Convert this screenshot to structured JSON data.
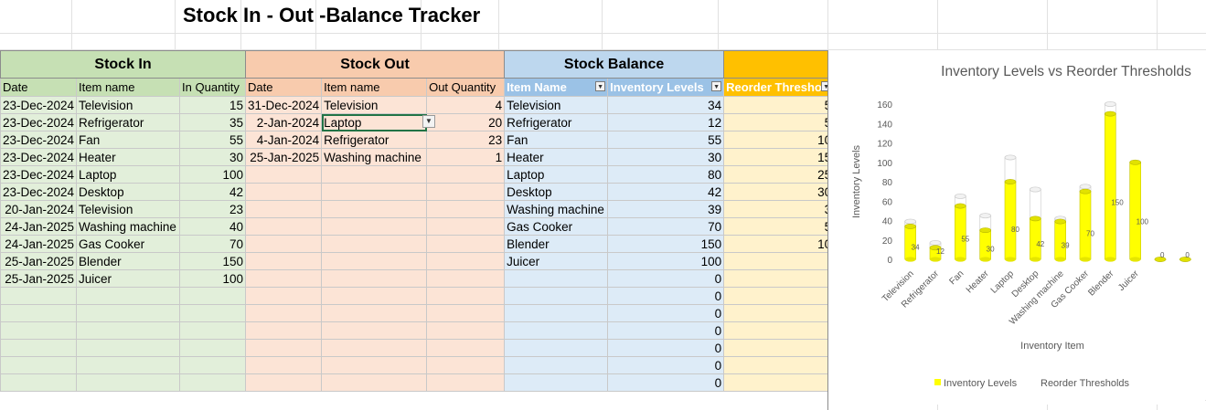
{
  "title": "Stock In - Out -Balance Tracker",
  "sections": {
    "stock_in": "Stock In",
    "stock_out": "Stock Out",
    "stock_balance": "Stock Balance"
  },
  "columns": {
    "in_date": "Date",
    "in_item": "Item name",
    "in_qty": "In Quantity",
    "out_date": "Date",
    "out_item": "Item name",
    "out_qty": "Out Quantity",
    "bal_item": "Item Name",
    "bal_level": "Inventory Levels",
    "bal_threshold": "Reorder Thresho"
  },
  "stock_in": [
    {
      "date": "23-Dec-2024",
      "item": "Television",
      "qty": "15"
    },
    {
      "date": "23-Dec-2024",
      "item": "Refrigerator",
      "qty": "35"
    },
    {
      "date": "23-Dec-2024",
      "item": "Fan",
      "qty": "55"
    },
    {
      "date": "23-Dec-2024",
      "item": "Heater",
      "qty": "30"
    },
    {
      "date": "23-Dec-2024",
      "item": "Laptop",
      "qty": "100"
    },
    {
      "date": "23-Dec-2024",
      "item": "Desktop",
      "qty": "42"
    },
    {
      "date": "20-Jan-2024",
      "item": "Television",
      "qty": "23"
    },
    {
      "date": "24-Jan-2025",
      "item": "Washing machine",
      "qty": "40"
    },
    {
      "date": "24-Jan-2025",
      "item": "Gas Cooker",
      "qty": "70"
    },
    {
      "date": "25-Jan-2025",
      "item": "Blender",
      "qty": "150"
    },
    {
      "date": "25-Jan-2025",
      "item": "Juicer",
      "qty": "100"
    }
  ],
  "stock_out": [
    {
      "date": "31-Dec-2024",
      "item": "Television",
      "qty": "4"
    },
    {
      "date": "2-Jan-2024",
      "item": "Laptop",
      "qty": "20"
    },
    {
      "date": "4-Jan-2024",
      "item": "Refrigerator",
      "qty": "23"
    },
    {
      "date": "25-Jan-2025",
      "item": "Washing machine",
      "qty": "1"
    }
  ],
  "stock_balance": [
    {
      "item": "Television",
      "level": "34",
      "threshold": "5"
    },
    {
      "item": "Refrigerator",
      "level": "12",
      "threshold": "5"
    },
    {
      "item": "Fan",
      "level": "55",
      "threshold": "10"
    },
    {
      "item": "Heater",
      "level": "30",
      "threshold": "15"
    },
    {
      "item": "Laptop",
      "level": "80",
      "threshold": "25"
    },
    {
      "item": "Desktop",
      "level": "42",
      "threshold": "30"
    },
    {
      "item": "Washing machine",
      "level": "39",
      "threshold": "3"
    },
    {
      "item": "Gas Cooker",
      "level": "70",
      "threshold": "5"
    },
    {
      "item": "Blender",
      "level": "150",
      "threshold": "10"
    },
    {
      "item": "Juicer",
      "level": "100",
      "threshold": ""
    },
    {
      "item": "",
      "level": "0",
      "threshold": ""
    },
    {
      "item": "",
      "level": "0",
      "threshold": ""
    },
    {
      "item": "",
      "level": "0",
      "threshold": ""
    },
    {
      "item": "",
      "level": "0",
      "threshold": ""
    },
    {
      "item": "",
      "level": "0",
      "threshold": ""
    },
    {
      "item": "",
      "level": "0",
      "threshold": ""
    },
    {
      "item": "",
      "level": "0",
      "threshold": ""
    }
  ],
  "colors": {
    "stock_in_fill": "#e2efda",
    "stock_out_fill": "#fce4d6",
    "balance_fill": "#ddebf7",
    "threshold_fill": "#fff2cc",
    "threshold_header": "#ffc000",
    "bar_yellow": "#ffff00",
    "selection_green": "#217346"
  },
  "chart_data": {
    "type": "bar",
    "title": "Inventory Levels vs Reorder Thresholds",
    "xlabel": "Inventory Item",
    "ylabel": "Inventory Levels",
    "ylim": [
      0,
      160
    ],
    "yticks": [
      "0",
      "20",
      "40",
      "60",
      "80",
      "100",
      "120",
      "140",
      "160"
    ],
    "categories": [
      "Television",
      "Refrigerator",
      "Fan",
      "Heater",
      "Laptop",
      "Desktop",
      "Washing machine",
      "Gas Cooker",
      "Blender",
      "Juicer",
      "",
      ""
    ],
    "series": [
      {
        "name": "Inventory Levels",
        "values": [
          34,
          12,
          55,
          30,
          80,
          42,
          39,
          70,
          150,
          100,
          0,
          0
        ],
        "color": "#ffff00"
      },
      {
        "name": "Reorder Thresholds",
        "values": [
          5,
          5,
          10,
          15,
          25,
          30,
          3,
          5,
          10,
          0,
          0,
          0
        ],
        "color": "#ffffff"
      }
    ],
    "data_labels": [
      "34",
      "12",
      "55",
      "30",
      "80",
      "42",
      "39",
      "70",
      "150",
      "100",
      "0",
      "0"
    ],
    "legend": "bottom",
    "grid": false
  }
}
